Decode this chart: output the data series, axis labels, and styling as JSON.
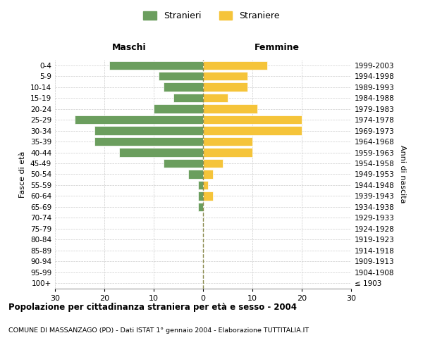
{
  "age_groups": [
    "100+",
    "95-99",
    "90-94",
    "85-89",
    "80-84",
    "75-79",
    "70-74",
    "65-69",
    "60-64",
    "55-59",
    "50-54",
    "45-49",
    "40-44",
    "35-39",
    "30-34",
    "25-29",
    "20-24",
    "15-19",
    "10-14",
    "5-9",
    "0-4"
  ],
  "birth_years": [
    "≤ 1903",
    "1904-1908",
    "1909-1913",
    "1914-1918",
    "1919-1923",
    "1924-1928",
    "1929-1933",
    "1934-1938",
    "1939-1943",
    "1944-1948",
    "1949-1953",
    "1954-1958",
    "1959-1963",
    "1964-1968",
    "1969-1973",
    "1974-1978",
    "1979-1983",
    "1984-1988",
    "1989-1993",
    "1994-1998",
    "1999-2003"
  ],
  "males": [
    0,
    0,
    0,
    0,
    0,
    0,
    0,
    1,
    1,
    1,
    3,
    8,
    17,
    22,
    22,
    26,
    10,
    6,
    8,
    9,
    19
  ],
  "females": [
    0,
    0,
    0,
    0,
    0,
    0,
    0,
    0,
    2,
    1,
    2,
    4,
    10,
    10,
    20,
    20,
    11,
    5,
    9,
    9,
    13
  ],
  "male_color": "#6b9e5e",
  "female_color": "#f5c43a",
  "center_line_color": "#8b8b4e",
  "grid_color": "#cccccc",
  "background_color": "#ffffff",
  "title": "Popolazione per cittadinanza straniera per età e sesso - 2004",
  "subtitle": "COMUNE DI MASSANZAGO (PD) - Dati ISTAT 1° gennaio 2004 - Elaborazione TUTTITALIA.IT",
  "xlabel_left": "Maschi",
  "xlabel_right": "Femmine",
  "ylabel_left": "Fasce di età",
  "ylabel_right": "Anni di nascita",
  "legend_male": "Stranieri",
  "legend_female": "Straniere",
  "xlim": 30
}
